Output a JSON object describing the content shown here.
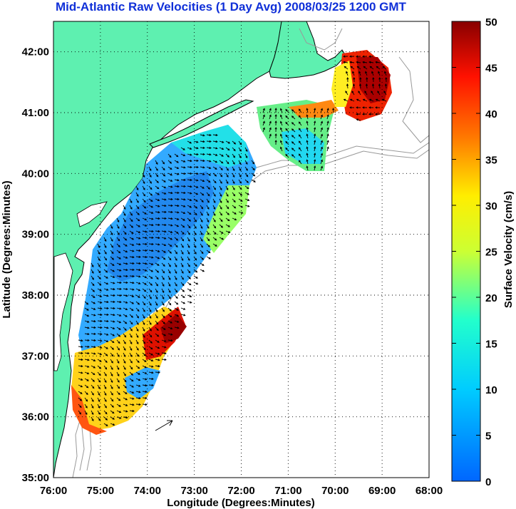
{
  "title": "Mid-Atlantic Raw Velocities (1 Day Avg) 2008/03/25 1200 GMT",
  "map": {
    "xlabel": "Longitude (Degrees:Minutes)",
    "ylabel": "Latitude (Degrees:Minutes)",
    "x_ticks": [
      "76:00",
      "75:00",
      "74:00",
      "73:00",
      "72:00",
      "71:00",
      "70:00",
      "69:00",
      "68:00"
    ],
    "y_ticks": [
      "42:00",
      "41:00",
      "40:00",
      "39:00",
      "38:00",
      "37:00",
      "36:00",
      "35:00"
    ],
    "xlim": [
      -76,
      -68
    ],
    "ylim": [
      35,
      42.5
    ],
    "land_color": "#5ef0b0",
    "grid": "dotted"
  },
  "colorbar": {
    "label": "Surface Velocity (cm/s)",
    "ticks": [
      "0",
      "5",
      "10",
      "15",
      "20",
      "25",
      "30",
      "35",
      "40",
      "45",
      "50"
    ],
    "min": 0,
    "max": 50,
    "colormap": "jet"
  }
}
